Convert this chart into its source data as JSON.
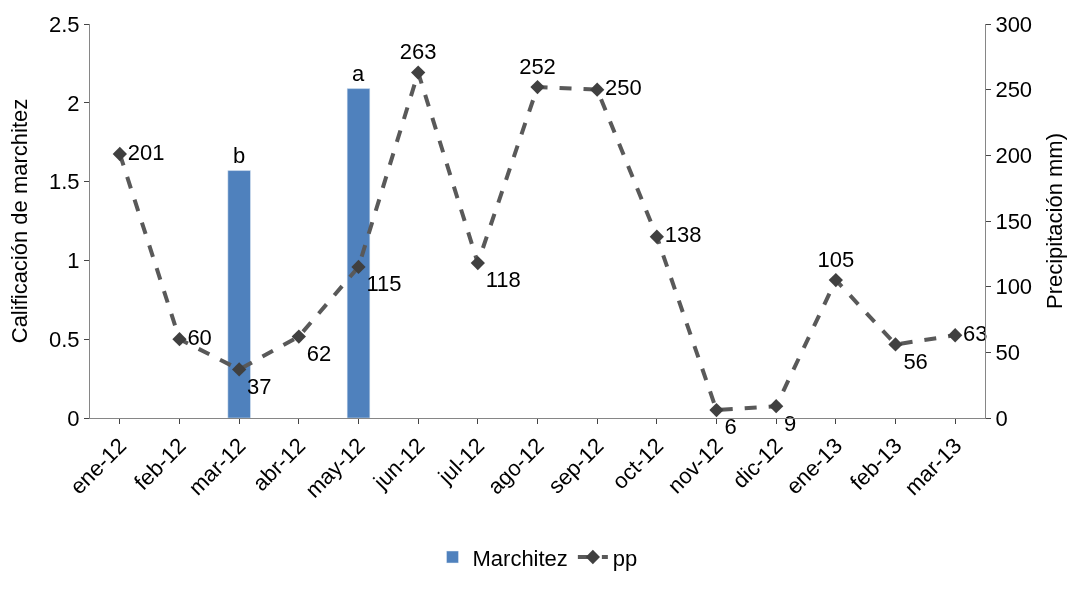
{
  "chart_data": {
    "type": "bar",
    "ylabel": "Calificación de marchitez",
    "y2label": "Precipitación mm)",
    "categories": [
      "ene-12",
      "feb-12",
      "mar-12",
      "abr-12",
      "may-12",
      "jun-12",
      "jul-12",
      "ago-12",
      "sep-12",
      "oct-12",
      "nov-12",
      "dic-12",
      "ene-13",
      "feb-13",
      "mar-13"
    ],
    "series": [
      {
        "name": "Marchitez",
        "color": "#4f81bd",
        "values": [
          null,
          null,
          1.57,
          null,
          2.09,
          null,
          null,
          null,
          null,
          null,
          null,
          null,
          null,
          null,
          null
        ],
        "value_labels": [
          null,
          null,
          "b",
          null,
          "a",
          null,
          null,
          null,
          null,
          null,
          null,
          null,
          null,
          null,
          null
        ]
      },
      {
        "name": "pp",
        "type": "line",
        "axis": "y2",
        "color": "#595959",
        "marker": "diamond",
        "line_style": "dashed",
        "data_labels": true,
        "values": [
          201,
          60,
          37,
          62,
          115,
          263,
          118,
          252,
          250,
          138,
          6,
          9,
          105,
          56,
          63
        ]
      }
    ],
    "ylim": [
      0,
      2.5
    ],
    "yticks": [
      0,
      0.5,
      1,
      1.5,
      2,
      2.5
    ],
    "y2lim": [
      0,
      300
    ],
    "y2ticks": [
      0,
      50,
      100,
      150,
      200,
      250,
      300
    ],
    "legend": "bottom"
  }
}
